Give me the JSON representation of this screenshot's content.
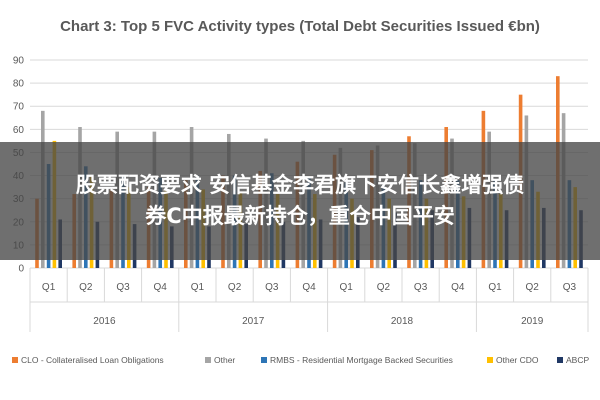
{
  "chart_data": {
    "type": "bar",
    "title": "Chart 3: Top 5 FVC Activity types (Total Debt Securities Issued €bn)",
    "ylim": [
      0,
      90
    ],
    "yticks": [
      0,
      10,
      20,
      30,
      40,
      50,
      60,
      70,
      80,
      90
    ],
    "categories": [
      "Q1",
      "Q2",
      "Q3",
      "Q4",
      "Q1",
      "Q2",
      "Q3",
      "Q4",
      "Q1",
      "Q2",
      "Q3",
      "Q4",
      "Q1",
      "Q2",
      "Q3"
    ],
    "year_groups": [
      {
        "label": "2016",
        "span": 4
      },
      {
        "label": "2017",
        "span": 4
      },
      {
        "label": "2018",
        "span": 4
      },
      {
        "label": "2019",
        "span": 3
      }
    ],
    "series": [
      {
        "name": "CLO - Collateralised Loan Obligations",
        "color": "#ED7D31",
        "values": [
          30,
          32,
          34,
          35,
          38,
          40,
          42,
          46,
          49,
          51,
          57,
          61,
          68,
          75,
          83
        ]
      },
      {
        "name": "Other",
        "color": "#A5A5A5",
        "values": [
          68,
          61,
          59,
          59,
          61,
          58,
          56,
          55,
          52,
          53,
          54,
          56,
          59,
          66,
          67
        ]
      },
      {
        "name": "RMBS - Residential Mortgage Backed Securities",
        "color": "#2E75B6",
        "values": [
          45,
          44,
          40,
          39,
          40,
          40,
          41,
          39,
          37,
          36,
          38,
          38,
          38,
          38,
          38
        ]
      },
      {
        "name": "Other CDO",
        "color": "#FFC000",
        "values": [
          55,
          40,
          35,
          34,
          34,
          33,
          32,
          32,
          30,
          30,
          30,
          31,
          32,
          33,
          35
        ]
      },
      {
        "name": "ABCP",
        "color": "#203864",
        "values": [
          21,
          20,
          19,
          18,
          18,
          19,
          20,
          21,
          22,
          24,
          25,
          26,
          25,
          26,
          25
        ]
      }
    ],
    "legend_position": "bottom",
    "grid": true
  },
  "overlay": {
    "text": "股票配资要求 安信基金李君旗下安信长鑫增强债\n券C中报最新持仓，重仓中国平安"
  }
}
